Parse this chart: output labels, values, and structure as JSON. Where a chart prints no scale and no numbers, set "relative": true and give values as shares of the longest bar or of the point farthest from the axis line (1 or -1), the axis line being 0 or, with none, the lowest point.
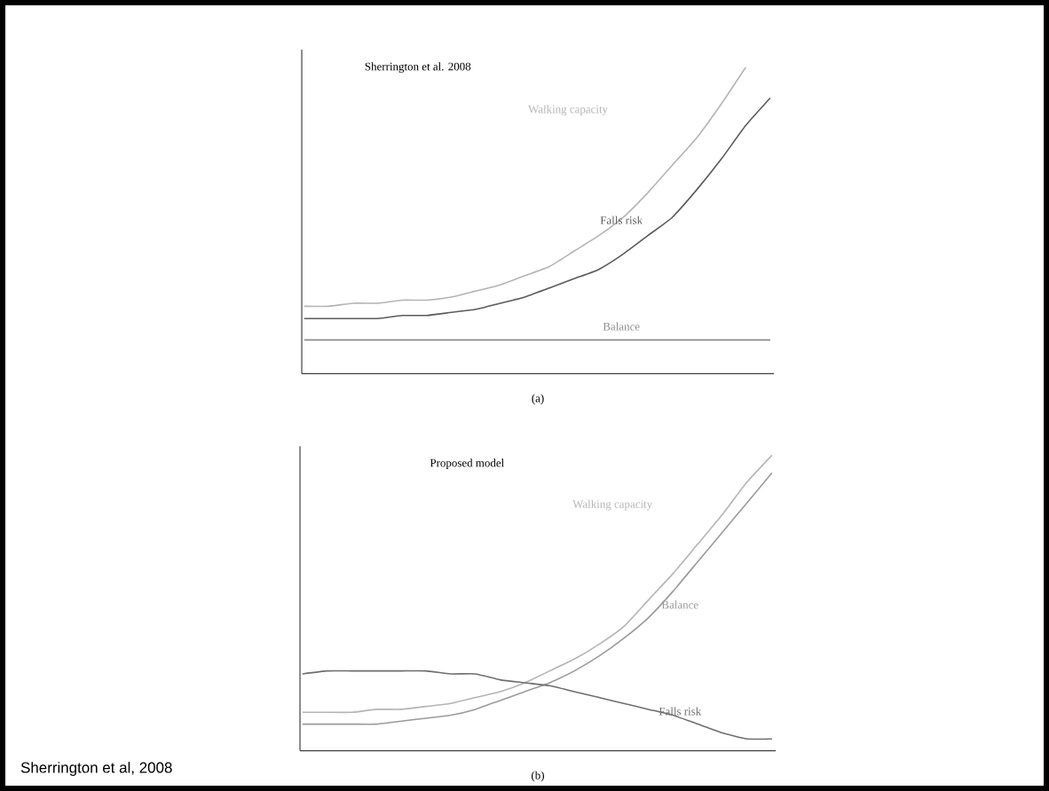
{
  "chart_data": [
    {
      "type": "line",
      "title": "Sherrington et al. 2008",
      "xlabel": "(a)",
      "relative": true,
      "tick_labels": false,
      "categories": [
        null,
        null,
        null,
        null,
        null,
        null,
        null,
        null,
        null,
        null,
        null,
        null,
        null,
        null,
        null,
        null,
        null,
        null,
        null,
        null
      ],
      "series": [
        {
          "name": "Walking capacity",
          "color": "#b4b4b4",
          "values": [
            0.22,
            0.22,
            0.23,
            0.23,
            0.24,
            0.24,
            0.25,
            0.27,
            0.29,
            0.32,
            0.35,
            0.4,
            0.45,
            0.51,
            0.59,
            0.68,
            0.77,
            0.88,
            1.0,
            null
          ]
        },
        {
          "name": "Falls risk",
          "color": "#5a5a5a",
          "values": [
            0.18,
            0.18,
            0.18,
            0.18,
            0.19,
            0.19,
            0.2,
            0.21,
            0.23,
            0.25,
            0.28,
            0.31,
            0.34,
            0.39,
            0.45,
            0.51,
            0.6,
            0.7,
            0.81,
            0.9
          ]
        },
        {
          "name": "Balance",
          "color": "#8c8c8c",
          "values": [
            0.11,
            0.11,
            0.11,
            0.11,
            0.11,
            0.11,
            0.11,
            0.11,
            0.11,
            0.11,
            0.11,
            0.11,
            0.11,
            0.11,
            0.11,
            0.11,
            0.11,
            0.11,
            0.11,
            0.11
          ]
        }
      ]
    },
    {
      "type": "line",
      "title": "Proposed model",
      "xlabel": "(b)",
      "relative": true,
      "tick_labels": false,
      "annotations": [
        "Sherrington et al, 2008"
      ],
      "categories": [
        null,
        null,
        null,
        null,
        null,
        null,
        null,
        null,
        null,
        null,
        null,
        null,
        null,
        null,
        null,
        null,
        null,
        null,
        null,
        null
      ],
      "series": [
        {
          "name": "Walking capacity",
          "color": "#b4b4b4",
          "values": [
            0.13,
            0.13,
            0.13,
            0.14,
            0.14,
            0.15,
            0.16,
            0.18,
            0.2,
            0.23,
            0.27,
            0.31,
            0.36,
            0.42,
            0.51,
            0.6,
            0.7,
            0.8,
            0.91,
            1.0
          ]
        },
        {
          "name": "Balance",
          "color": "#9a9a9a",
          "values": [
            0.09,
            0.09,
            0.09,
            0.09,
            0.1,
            0.11,
            0.12,
            0.14,
            0.17,
            0.2,
            0.23,
            0.27,
            0.32,
            0.38,
            0.45,
            0.54,
            0.64,
            0.74,
            0.84,
            0.94
          ]
        },
        {
          "name": "Falls risk",
          "color": "#6e6e6e",
          "values": [
            0.26,
            0.27,
            0.27,
            0.27,
            0.27,
            0.27,
            0.26,
            0.26,
            0.24,
            0.23,
            0.22,
            0.2,
            0.18,
            0.16,
            0.14,
            0.12,
            0.09,
            0.06,
            0.04,
            0.04
          ]
        }
      ]
    }
  ]
}
